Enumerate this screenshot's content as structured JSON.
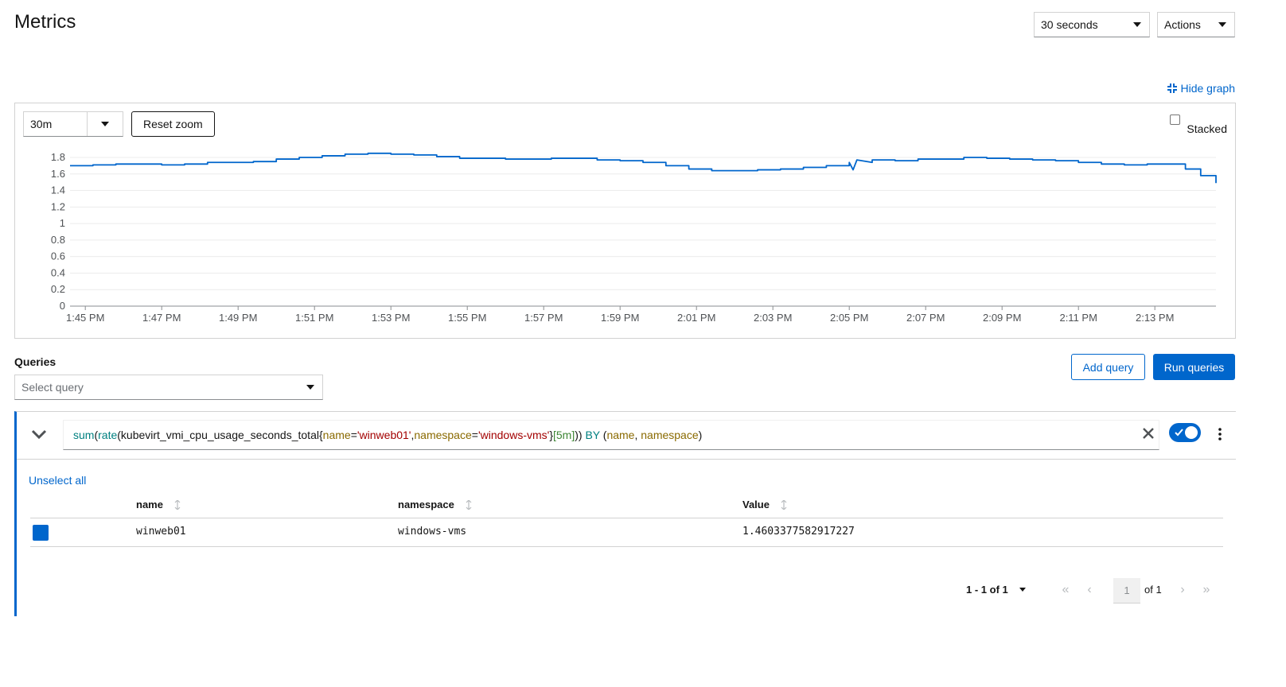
{
  "header": {
    "title": "Metrics",
    "refresh_interval": "30 seconds",
    "actions_label": "Actions"
  },
  "graph": {
    "hide_graph_label": "Hide graph",
    "time_range": "30m",
    "reset_zoom_label": "Reset zoom",
    "stacked_label": "Stacked",
    "stacked_checked": false
  },
  "chart_data": {
    "type": "line",
    "x_tick_labels": [
      "1:45 PM",
      "1:47 PM",
      "1:49 PM",
      "1:51 PM",
      "1:53 PM",
      "1:55 PM",
      "1:57 PM",
      "1:59 PM",
      "2:01 PM",
      "2:03 PM",
      "2:05 PM",
      "2:07 PM",
      "2:09 PM",
      "2:11 PM",
      "2:13 PM"
    ],
    "y_tick_labels": [
      "0",
      "0.2",
      "0.4",
      "0.6",
      "0.8",
      "1",
      "1.2",
      "1.4",
      "1.6",
      "1.8"
    ],
    "ylim": [
      0,
      1.8
    ],
    "xlim_minutes_from_1_45": [
      -0.4,
      29.6
    ],
    "grid": true,
    "series": [
      {
        "color": "#06c",
        "x": [
          -0.4,
          0.2,
          0.8,
          1.4,
          2.0,
          2.6,
          3.2,
          3.8,
          4.4,
          5.0,
          5.6,
          6.2,
          6.8,
          7.4,
          8.0,
          8.6,
          9.2,
          9.8,
          10.4,
          11.0,
          11.6,
          12.2,
          12.8,
          13.4,
          14.0,
          14.6,
          15.2,
          15.8,
          16.4,
          17.0,
          17.6,
          18.2,
          18.8,
          19.4,
          20.0,
          20.6,
          21.2,
          21.8,
          22.4,
          23.0,
          23.6,
          24.2,
          24.8,
          25.4,
          26.0,
          26.6,
          27.2,
          27.8,
          28.4,
          28.8,
          29.2,
          29.6
        ],
        "values": [
          1.7,
          1.71,
          1.72,
          1.72,
          1.71,
          1.72,
          1.74,
          1.74,
          1.75,
          1.78,
          1.8,
          1.82,
          1.84,
          1.85,
          1.84,
          1.83,
          1.81,
          1.79,
          1.79,
          1.78,
          1.78,
          1.79,
          1.79,
          1.77,
          1.76,
          1.74,
          1.7,
          1.66,
          1.64,
          1.64,
          1.65,
          1.66,
          1.68,
          1.7,
          1.74,
          1.77,
          1.76,
          1.78,
          1.78,
          1.8,
          1.79,
          1.78,
          1.77,
          1.76,
          1.74,
          1.72,
          1.71,
          1.72,
          1.72,
          1.66,
          1.58,
          1.49
        ],
        "dip": {
          "x": 20.1,
          "value": 1.65
        }
      }
    ]
  },
  "queries": {
    "label": "Queries",
    "select_placeholder": "Select query",
    "add_query_label": "Add query",
    "run_queries_label": "Run queries",
    "expression": {
      "fn_sum": "sum",
      "paren1": "(",
      "fn_rate": "rate",
      "paren2": "(",
      "metric": "kubevirt_vmi_cpu_usage_seconds_total{",
      "lbl_name": "name",
      "eq1": "=",
      "val_name": "'winweb01'",
      "comma1": ",",
      "lbl_ns": "namespace",
      "eq2": "=",
      "val_ns": "'windows-vms'",
      "close_brace": "}",
      "range": "[5m]",
      "closers": "))",
      "kw_by": " BY ",
      "group_open": "(",
      "grp_name": "name",
      "grp_sep": ", ",
      "grp_ns": "namespace",
      "group_close": ")"
    },
    "enabled": true,
    "unselect_all_label": "Unselect all",
    "table": {
      "columns": [
        "name",
        "namespace",
        "Value"
      ],
      "rows": [
        {
          "name": "winweb01",
          "namespace": "windows-vms",
          "value": "1.4603377582917227",
          "color": "#06c"
        }
      ]
    },
    "pagination": {
      "range_label": "1 - 1 of 1",
      "current_page": "1",
      "of_label": "of 1"
    }
  }
}
